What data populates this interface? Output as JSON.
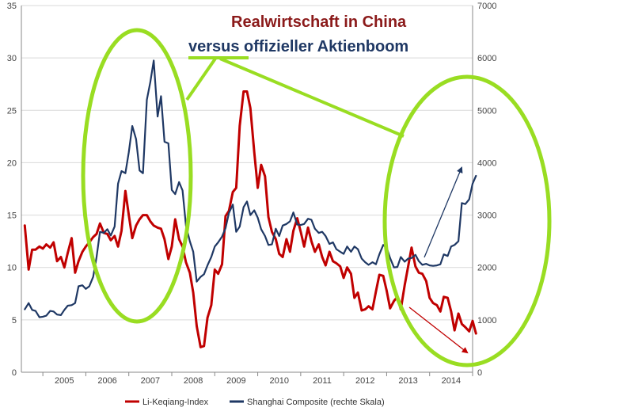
{
  "chart_data": {
    "type": "line",
    "title_line1": "Realwirtschaft in China",
    "title_line2": "versus offizieller Aktienboom",
    "x_start": 2004.5,
    "x_end": 2015.0,
    "x_ticks": [
      "2005",
      "2006",
      "2007",
      "2008",
      "2009",
      "2010",
      "2011",
      "2012",
      "2013",
      "2014"
    ],
    "y_left_lim": [
      0,
      35
    ],
    "y_left_ticks": [
      "0",
      "5",
      "10",
      "15",
      "20",
      "25",
      "30",
      "35"
    ],
    "y_right_lim": [
      0,
      7000
    ],
    "y_right_ticks": [
      "0",
      "1000",
      "2000",
      "3000",
      "4000",
      "5000",
      "6000",
      "7000"
    ],
    "grid": true,
    "legend_position": "bottom",
    "colors": {
      "li_keqiang": "#c00000",
      "shanghai": "#1f3864",
      "highlight": "#99dd22",
      "arrow_up": "#1f3864",
      "arrow_down": "#c00000"
    },
    "series": [
      {
        "name": "Li-Keqiang-Index",
        "axis": "left",
        "points": [
          [
            2004.58,
            14.0
          ],
          [
            2004.67,
            9.8
          ],
          [
            2004.75,
            11.7
          ],
          [
            2004.83,
            11.7
          ],
          [
            2004.92,
            12.0
          ],
          [
            2005.0,
            11.8
          ],
          [
            2005.08,
            12.2
          ],
          [
            2005.17,
            11.9
          ],
          [
            2005.25,
            12.4
          ],
          [
            2005.33,
            10.6
          ],
          [
            2005.42,
            11.0
          ],
          [
            2005.5,
            10.0
          ],
          [
            2005.58,
            11.4
          ],
          [
            2005.67,
            12.8
          ],
          [
            2005.75,
            9.5
          ],
          [
            2005.83,
            10.6
          ],
          [
            2005.92,
            11.5
          ],
          [
            2006.0,
            12.0
          ],
          [
            2006.08,
            12.4
          ],
          [
            2006.17,
            12.9
          ],
          [
            2006.25,
            13.2
          ],
          [
            2006.33,
            14.2
          ],
          [
            2006.42,
            13.3
          ],
          [
            2006.5,
            13.2
          ],
          [
            2006.58,
            12.6
          ],
          [
            2006.67,
            13.0
          ],
          [
            2006.75,
            12.0
          ],
          [
            2006.83,
            13.5
          ],
          [
            2006.92,
            17.3
          ],
          [
            2007.0,
            15.0
          ],
          [
            2007.08,
            12.8
          ],
          [
            2007.17,
            14.0
          ],
          [
            2007.25,
            14.6
          ],
          [
            2007.33,
            15.0
          ],
          [
            2007.42,
            15.0
          ],
          [
            2007.5,
            14.4
          ],
          [
            2007.58,
            14.0
          ],
          [
            2007.67,
            13.8
          ],
          [
            2007.75,
            13.7
          ],
          [
            2007.83,
            12.7
          ],
          [
            2007.92,
            10.8
          ],
          [
            2008.0,
            12.0
          ],
          [
            2008.08,
            14.6
          ],
          [
            2008.17,
            12.7
          ],
          [
            2008.25,
            12.0
          ],
          [
            2008.33,
            10.5
          ],
          [
            2008.42,
            9.5
          ],
          [
            2008.5,
            7.6
          ],
          [
            2008.58,
            4.4
          ],
          [
            2008.67,
            2.4
          ],
          [
            2008.75,
            2.5
          ],
          [
            2008.83,
            5.2
          ],
          [
            2008.92,
            6.4
          ],
          [
            2009.0,
            9.8
          ],
          [
            2009.08,
            9.4
          ],
          [
            2009.17,
            10.3
          ],
          [
            2009.25,
            14.9
          ],
          [
            2009.33,
            15.4
          ],
          [
            2009.42,
            17.2
          ],
          [
            2009.5,
            17.6
          ],
          [
            2009.58,
            23.5
          ],
          [
            2009.67,
            26.8
          ],
          [
            2009.75,
            26.8
          ],
          [
            2009.83,
            25.2
          ],
          [
            2009.92,
            21.0
          ],
          [
            2010.0,
            17.6
          ],
          [
            2010.08,
            19.8
          ],
          [
            2010.17,
            18.7
          ],
          [
            2010.25,
            14.8
          ],
          [
            2010.33,
            13.4
          ],
          [
            2010.42,
            12.7
          ],
          [
            2010.5,
            11.3
          ],
          [
            2010.58,
            11.0
          ],
          [
            2010.67,
            12.7
          ],
          [
            2010.75,
            11.5
          ],
          [
            2010.83,
            13.5
          ],
          [
            2010.92,
            14.7
          ],
          [
            2011.0,
            13.4
          ],
          [
            2011.08,
            12.0
          ],
          [
            2011.17,
            13.8
          ],
          [
            2011.25,
            12.5
          ],
          [
            2011.33,
            11.5
          ],
          [
            2011.42,
            12.2
          ],
          [
            2011.5,
            11.0
          ],
          [
            2011.58,
            10.2
          ],
          [
            2011.67,
            11.5
          ],
          [
            2011.75,
            10.6
          ],
          [
            2011.83,
            10.4
          ],
          [
            2011.92,
            10.1
          ],
          [
            2012.0,
            9.0
          ],
          [
            2012.08,
            10.0
          ],
          [
            2012.17,
            9.4
          ],
          [
            2012.25,
            7.1
          ],
          [
            2012.33,
            7.6
          ],
          [
            2012.42,
            5.9
          ],
          [
            2012.5,
            6.0
          ],
          [
            2012.58,
            6.3
          ],
          [
            2012.67,
            6.0
          ],
          [
            2012.75,
            7.7
          ],
          [
            2012.83,
            9.3
          ],
          [
            2012.92,
            9.2
          ],
          [
            2013.0,
            7.8
          ],
          [
            2013.08,
            6.1
          ],
          [
            2013.17,
            6.8
          ],
          [
            2013.25,
            7.2
          ],
          [
            2013.33,
            6.0
          ],
          [
            2013.42,
            8.3
          ],
          [
            2013.5,
            10.1
          ],
          [
            2013.58,
            11.9
          ],
          [
            2013.67,
            10.1
          ],
          [
            2013.75,
            9.5
          ],
          [
            2013.83,
            9.4
          ],
          [
            2013.92,
            8.7
          ],
          [
            2014.0,
            7.1
          ],
          [
            2014.08,
            6.6
          ],
          [
            2014.17,
            6.4
          ],
          [
            2014.25,
            5.8
          ],
          [
            2014.33,
            7.2
          ],
          [
            2014.42,
            7.1
          ],
          [
            2014.5,
            5.8
          ],
          [
            2014.58,
            4.0
          ],
          [
            2014.67,
            5.6
          ],
          [
            2014.75,
            4.6
          ],
          [
            2014.83,
            4.3
          ],
          [
            2014.92,
            3.9
          ],
          [
            2015.0,
            4.9
          ],
          [
            2015.08,
            3.7
          ]
        ]
      },
      {
        "name": "Shanghai Composite (rechte Skala)",
        "axis": "right",
        "points": [
          [
            2004.58,
            1200
          ],
          [
            2004.67,
            1320
          ],
          [
            2004.75,
            1190
          ],
          [
            2004.83,
            1170
          ],
          [
            2004.92,
            1050
          ],
          [
            2005.0,
            1060
          ],
          [
            2005.08,
            1080
          ],
          [
            2005.17,
            1170
          ],
          [
            2005.25,
            1160
          ],
          [
            2005.33,
            1100
          ],
          [
            2005.42,
            1090
          ],
          [
            2005.5,
            1190
          ],
          [
            2005.58,
            1270
          ],
          [
            2005.67,
            1280
          ],
          [
            2005.75,
            1320
          ],
          [
            2005.83,
            1640
          ],
          [
            2005.92,
            1660
          ],
          [
            2006.0,
            1590
          ],
          [
            2006.08,
            1640
          ],
          [
            2006.17,
            1820
          ],
          [
            2006.25,
            2200
          ],
          [
            2006.33,
            2680
          ],
          [
            2006.42,
            2660
          ],
          [
            2006.5,
            2730
          ],
          [
            2006.58,
            2610
          ],
          [
            2006.67,
            2780
          ],
          [
            2006.75,
            3600
          ],
          [
            2006.83,
            3840
          ],
          [
            2006.92,
            3800
          ],
          [
            2007.0,
            4200
          ],
          [
            2007.08,
            4700
          ],
          [
            2007.17,
            4450
          ],
          [
            2007.25,
            3850
          ],
          [
            2007.33,
            3800
          ],
          [
            2007.42,
            5200
          ],
          [
            2007.5,
            5540
          ],
          [
            2007.58,
            5950
          ],
          [
            2007.67,
            4880
          ],
          [
            2007.75,
            5270
          ],
          [
            2007.83,
            4400
          ],
          [
            2007.92,
            4370
          ],
          [
            2008.0,
            3480
          ],
          [
            2008.08,
            3400
          ],
          [
            2008.17,
            3630
          ],
          [
            2008.25,
            3470
          ],
          [
            2008.33,
            2800
          ],
          [
            2008.42,
            2500
          ],
          [
            2008.5,
            2300
          ],
          [
            2008.58,
            1730
          ],
          [
            2008.67,
            1820
          ],
          [
            2008.75,
            1870
          ],
          [
            2008.83,
            2040
          ],
          [
            2008.92,
            2200
          ],
          [
            2009.0,
            2400
          ],
          [
            2009.08,
            2480
          ],
          [
            2009.17,
            2590
          ],
          [
            2009.25,
            2750
          ],
          [
            2009.33,
            3040
          ],
          [
            2009.42,
            3200
          ],
          [
            2009.5,
            2680
          ],
          [
            2009.58,
            2780
          ],
          [
            2009.67,
            3150
          ],
          [
            2009.75,
            3260
          ],
          [
            2009.83,
            3000
          ],
          [
            2009.92,
            3090
          ],
          [
            2010.0,
            2950
          ],
          [
            2010.08,
            2730
          ],
          [
            2010.17,
            2600
          ],
          [
            2010.25,
            2430
          ],
          [
            2010.33,
            2440
          ],
          [
            2010.42,
            2740
          ],
          [
            2010.5,
            2600
          ],
          [
            2010.58,
            2800
          ],
          [
            2010.67,
            2830
          ],
          [
            2010.75,
            2880
          ],
          [
            2010.83,
            3050
          ],
          [
            2010.92,
            2820
          ],
          [
            2011.0,
            2810
          ],
          [
            2011.08,
            2830
          ],
          [
            2011.17,
            2930
          ],
          [
            2011.25,
            2910
          ],
          [
            2011.33,
            2740
          ],
          [
            2011.42,
            2660
          ],
          [
            2011.5,
            2680
          ],
          [
            2011.58,
            2600
          ],
          [
            2011.67,
            2450
          ],
          [
            2011.75,
            2480
          ],
          [
            2011.83,
            2350
          ],
          [
            2011.92,
            2300
          ],
          [
            2012.0,
            2260
          ],
          [
            2012.08,
            2400
          ],
          [
            2012.17,
            2300
          ],
          [
            2012.25,
            2400
          ],
          [
            2012.33,
            2350
          ],
          [
            2012.42,
            2170
          ],
          [
            2012.5,
            2100
          ],
          [
            2012.58,
            2050
          ],
          [
            2012.67,
            2100
          ],
          [
            2012.75,
            2060
          ],
          [
            2012.83,
            2250
          ],
          [
            2012.92,
            2430
          ],
          [
            2013.0,
            2380
          ],
          [
            2013.08,
            2180
          ],
          [
            2013.17,
            2000
          ],
          [
            2013.25,
            2010
          ],
          [
            2013.33,
            2200
          ],
          [
            2013.42,
            2110
          ],
          [
            2013.5,
            2170
          ],
          [
            2013.58,
            2180
          ],
          [
            2013.67,
            2240
          ],
          [
            2013.75,
            2120
          ],
          [
            2013.83,
            2050
          ],
          [
            2013.92,
            2070
          ],
          [
            2014.0,
            2040
          ],
          [
            2014.08,
            2030
          ],
          [
            2014.17,
            2040
          ],
          [
            2014.25,
            2060
          ],
          [
            2014.33,
            2250
          ],
          [
            2014.42,
            2220
          ],
          [
            2014.5,
            2400
          ],
          [
            2014.58,
            2430
          ],
          [
            2014.67,
            2500
          ],
          [
            2014.75,
            3230
          ],
          [
            2014.83,
            3210
          ],
          [
            2014.92,
            3300
          ],
          [
            2015.0,
            3600
          ],
          [
            2015.08,
            3750
          ]
        ]
      }
    ]
  }
}
